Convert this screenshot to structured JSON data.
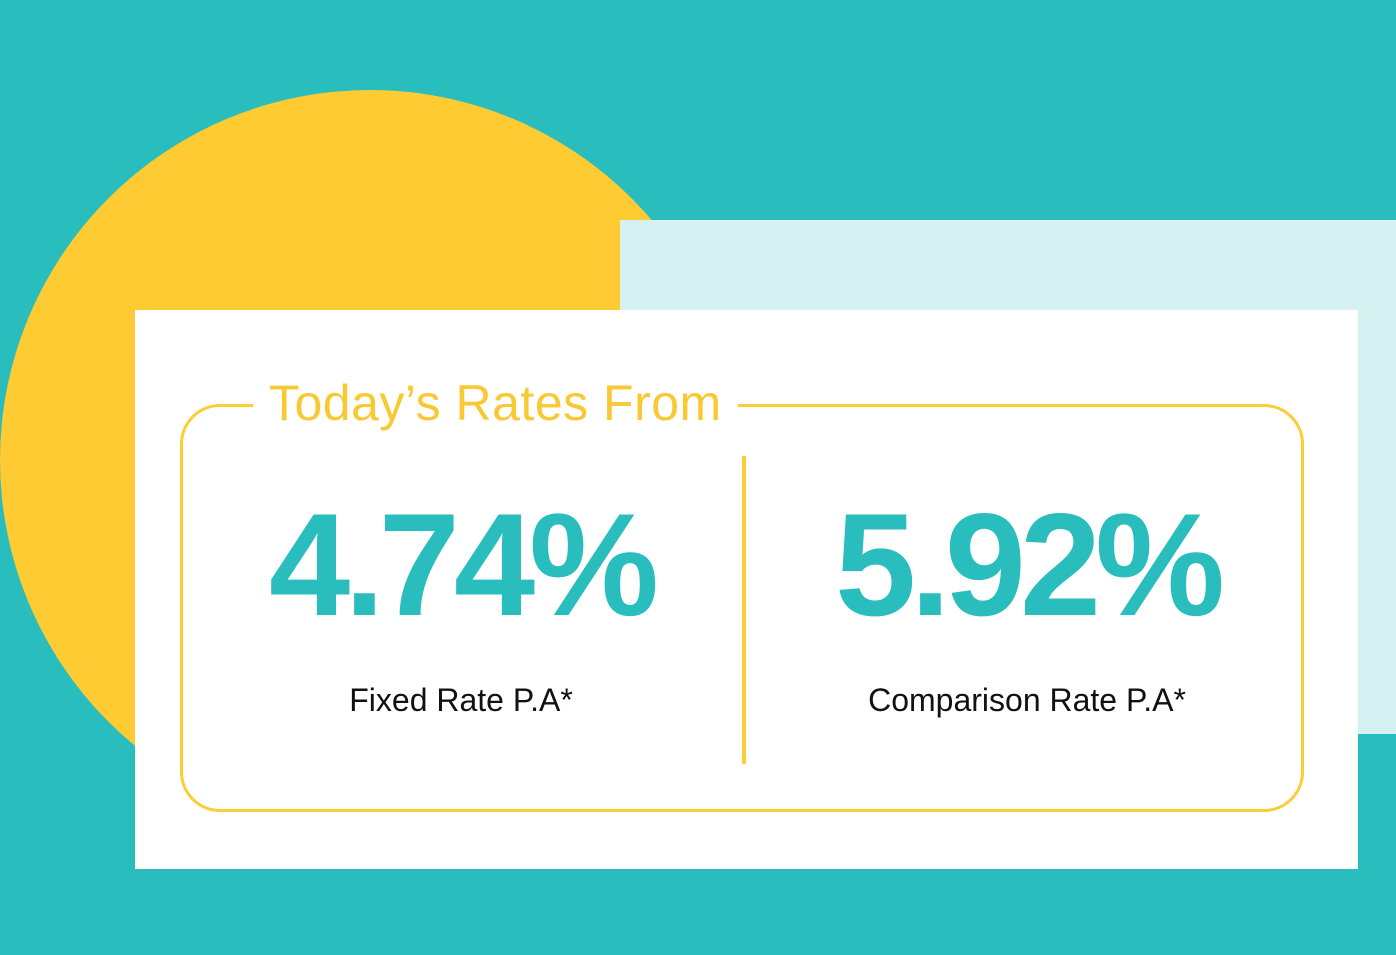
{
  "title": "Today’s Rates From",
  "rates": [
    {
      "value": "4.74%",
      "label": "Fixed Rate P.A*"
    },
    {
      "value": "5.92%",
      "label": "Comparison Rate P.A*"
    }
  ],
  "colors": {
    "teal": "#29bdbd",
    "yellow": "#fecb33",
    "pale_teal": "#d5f1f1",
    "white": "#ffffff",
    "text": "#111111"
  }
}
